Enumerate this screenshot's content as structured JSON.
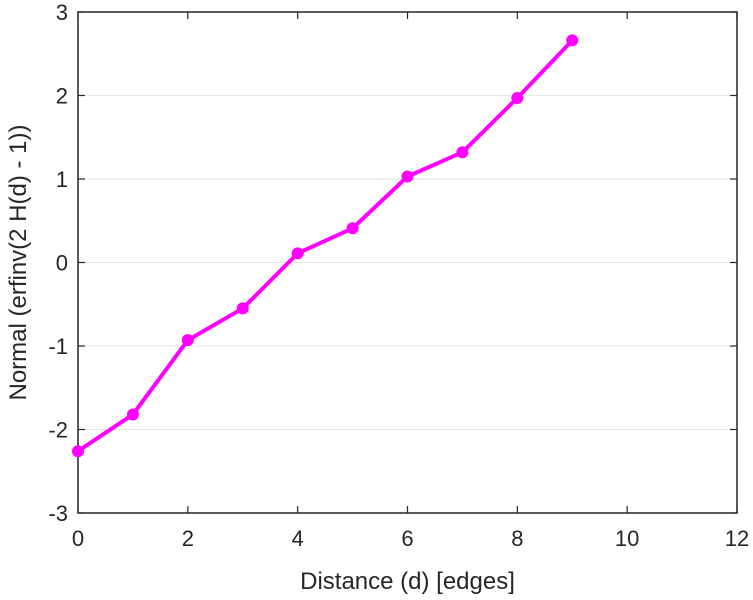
{
  "chart_data": {
    "type": "line",
    "title": "",
    "xlabel": "Distance (d) [edges]",
    "ylabel": "Normal (erfinv(2 H(d) - 1))",
    "xlim": [
      0,
      12
    ],
    "ylim": [
      -3,
      3
    ],
    "xticks": [
      0,
      2,
      4,
      6,
      8,
      10,
      12
    ],
    "yticks": [
      -3,
      -2,
      -1,
      0,
      1,
      2,
      3
    ],
    "xtick_labels": [
      "0",
      "2",
      "4",
      "6",
      "8",
      "10",
      "12"
    ],
    "ytick_labels": [
      "-3",
      "-2",
      "-1",
      "0",
      "1",
      "2",
      "3"
    ],
    "grid": "horizontal",
    "series": [
      {
        "color": "#ff00ff",
        "marker": "circle",
        "x": [
          0,
          1,
          2,
          3,
          4,
          5,
          6,
          7,
          8,
          9
        ],
        "y": [
          -2.26,
          -1.82,
          -0.93,
          -0.55,
          0.11,
          0.41,
          1.03,
          1.32,
          1.97,
          2.66
        ]
      }
    ]
  }
}
